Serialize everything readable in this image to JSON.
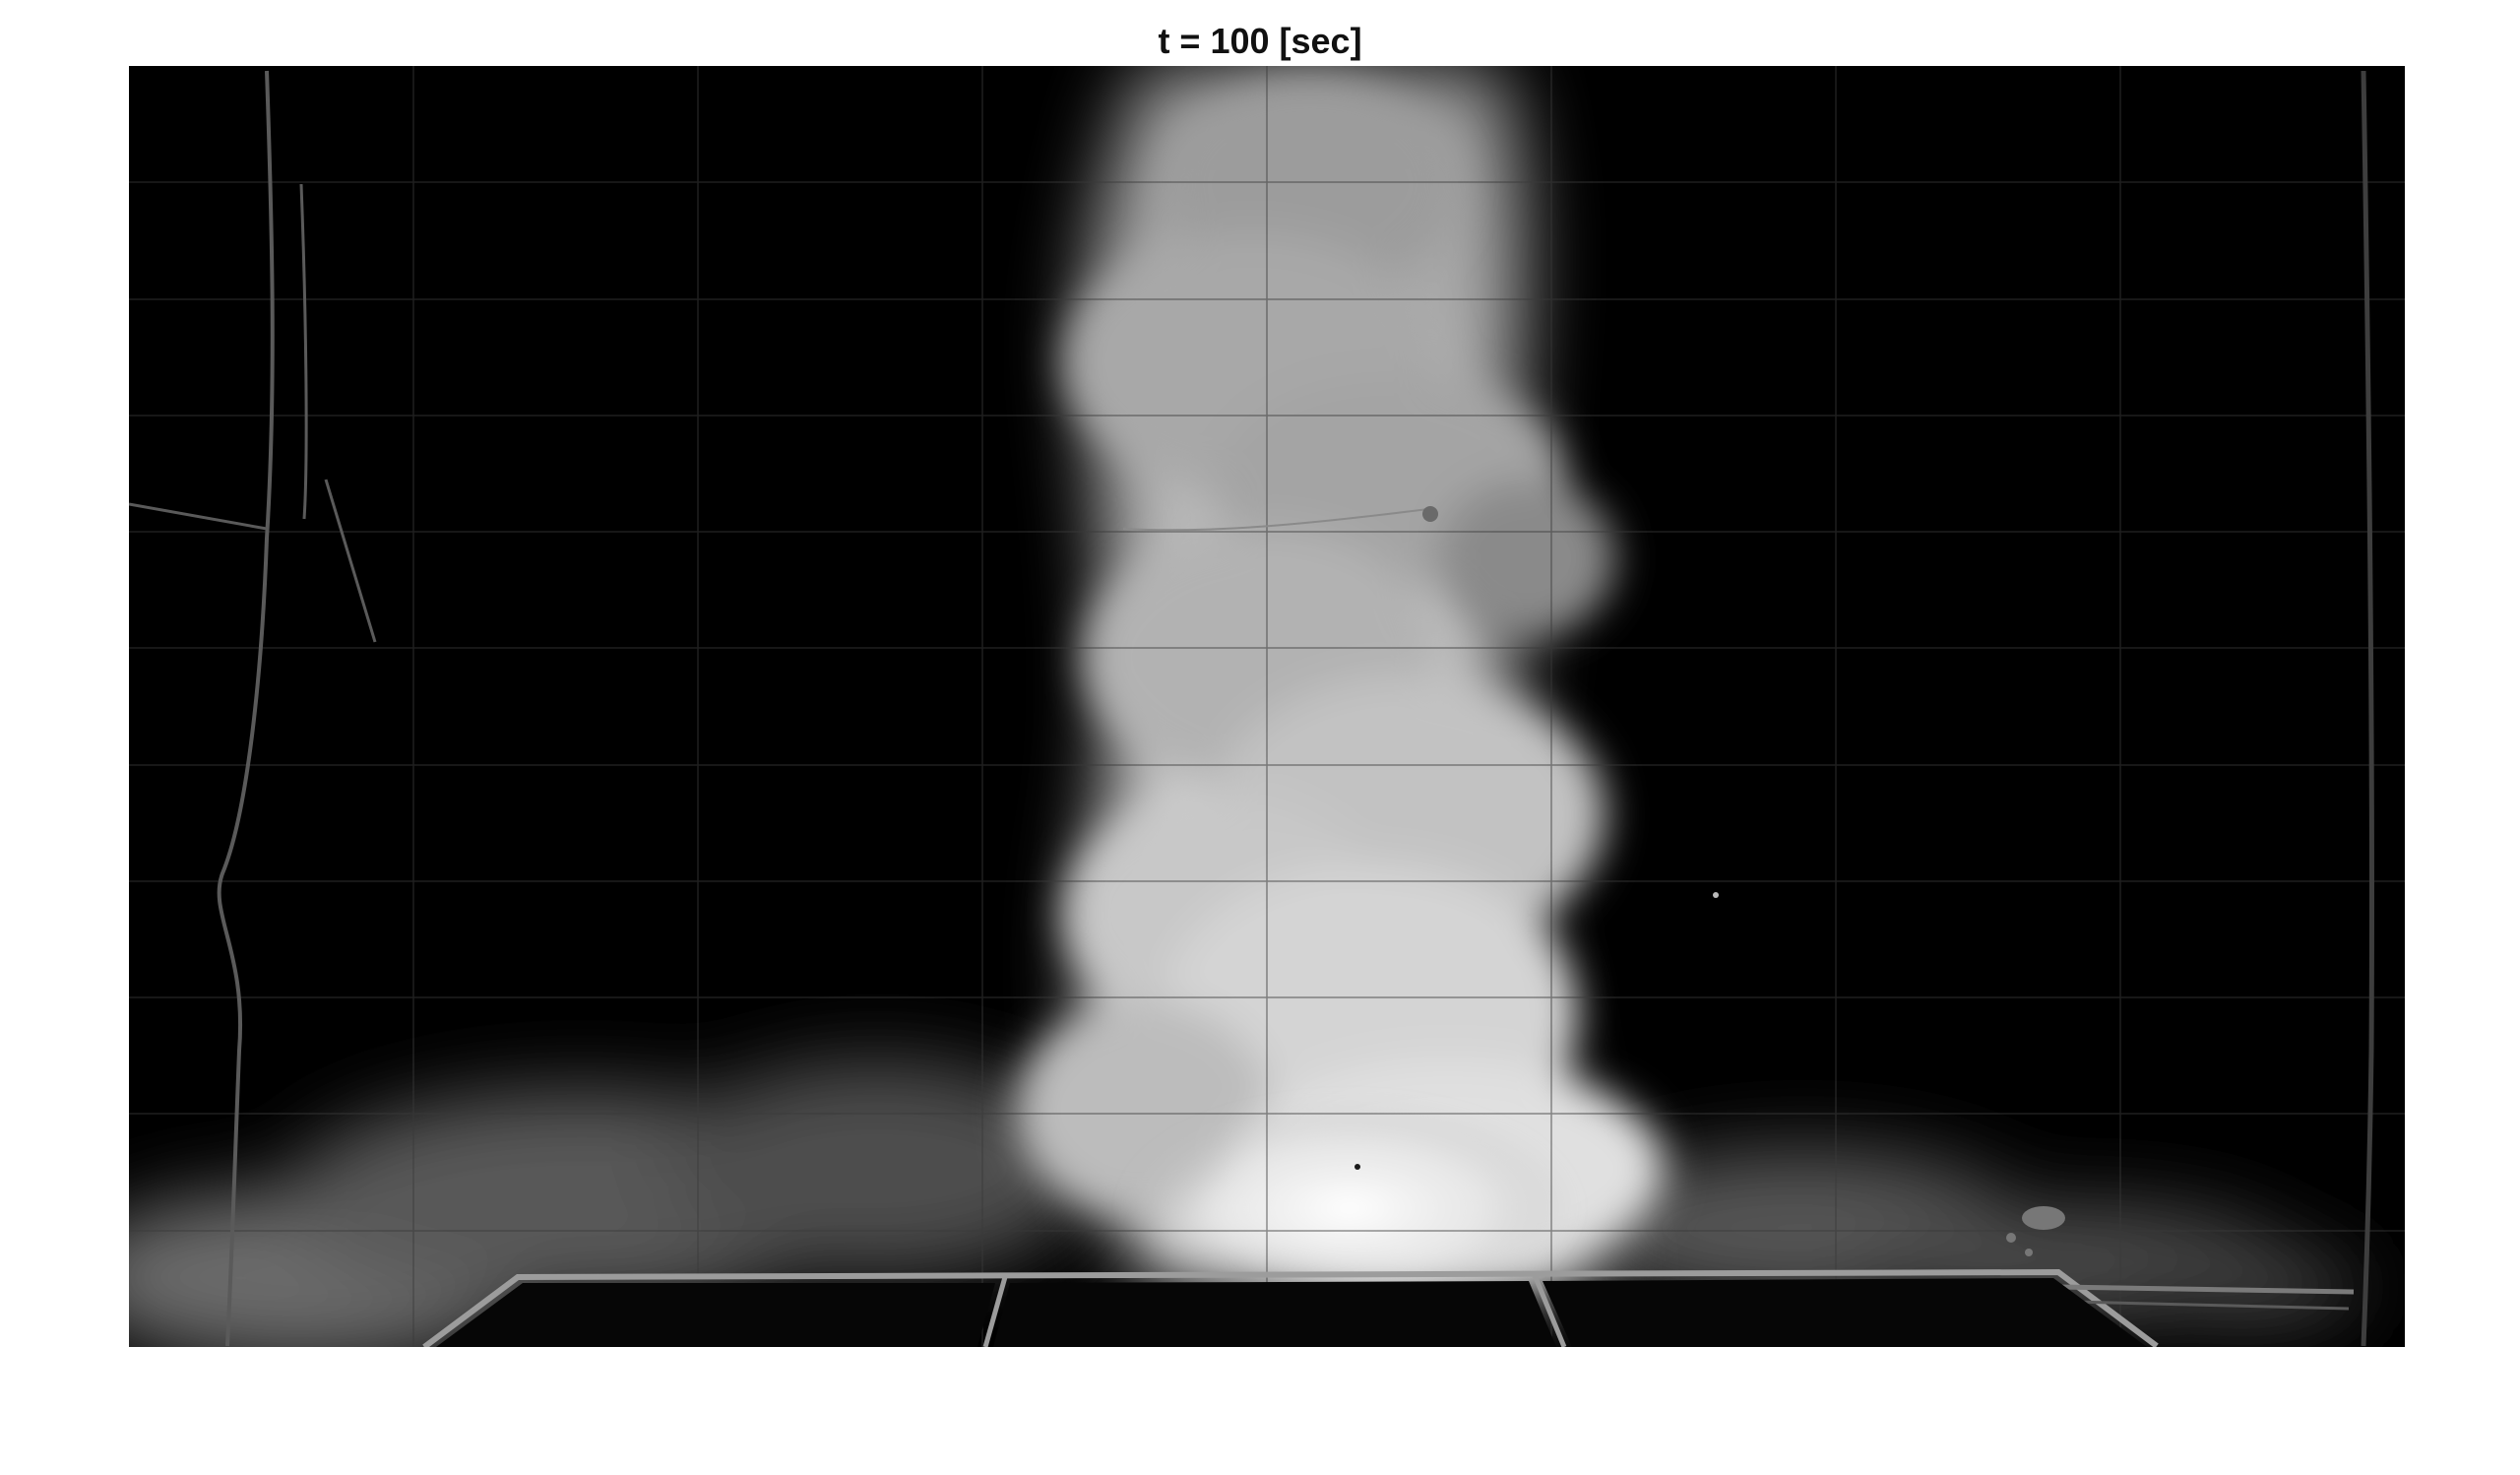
{
  "figure": {
    "title": "t = 100 [sec]",
    "colors": {
      "background": "#ffffff",
      "axes_background": "#000000",
      "grid": "#3a3a3a",
      "plume": "#eaeaea"
    },
    "grid": true
  }
}
